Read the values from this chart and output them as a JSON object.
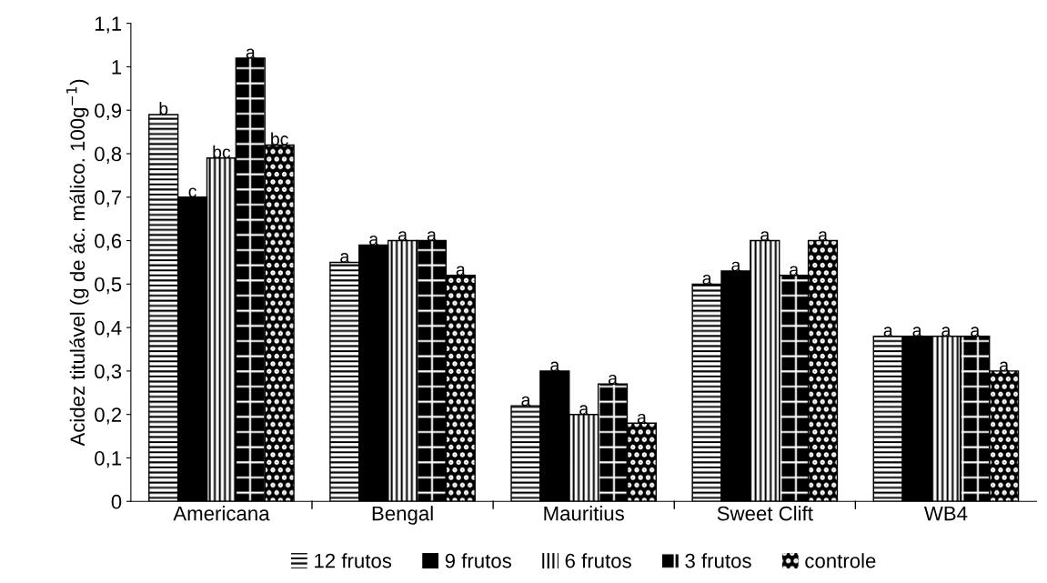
{
  "chart_data": {
    "type": "bar",
    "ylabel": "Acidez titulável (g de ác. málico. 100g$^{−1}$)",
    "categories": [
      "Americana",
      "Bengal",
      "Mauritius",
      "Sweet Clift",
      "WB4"
    ],
    "series": [
      {
        "name": "12 frutos",
        "color": "#000000",
        "values": [
          0.89,
          0.55,
          0.22,
          0.5,
          0.38
        ],
        "value_labels": [
          "b",
          "a",
          "a",
          "a",
          "a"
        ]
      },
      {
        "name": "9 frutos",
        "color": "#000000",
        "values": [
          0.7,
          0.59,
          0.3,
          0.53,
          0.38
        ],
        "value_labels": [
          "c",
          "a",
          "a",
          "a",
          "a"
        ]
      },
      {
        "name": "6 frutos",
        "color": "#000000",
        "values": [
          0.79,
          0.6,
          0.2,
          0.6,
          0.38
        ],
        "value_labels": [
          "bc",
          "a",
          "a",
          "a",
          "a"
        ]
      },
      {
        "name": "3 frutos",
        "color": "#000000",
        "values": [
          1.02,
          0.6,
          0.27,
          0.52,
          0.38
        ],
        "value_labels": [
          "a",
          "a",
          "a",
          "a",
          "a"
        ]
      },
      {
        "name": "controle",
        "color": "#000000",
        "values": [
          0.82,
          0.52,
          0.18,
          0.6,
          0.3
        ],
        "value_labels": [
          "bc",
          "a",
          "a",
          "a",
          "a"
        ]
      }
    ],
    "ylim": [
      0,
      1.1
    ],
    "yticks": [
      0,
      {
        "value": 0.1,
        "label": "0,1"
      },
      {
        "value": 0.2,
        "label": "0,2"
      },
      {
        "value": 0.3,
        "label": "0,3"
      },
      {
        "value": 0.4,
        "label": "0,4"
      },
      {
        "value": 0.5,
        "label": "0,5"
      },
      {
        "value": 0.6,
        "label": "0,6"
      },
      {
        "value": 0.7,
        "label": "0,7"
      },
      {
        "value": 0.8,
        "label": "0,8"
      },
      {
        "value": 0.9,
        "label": "0,9"
      },
      1,
      {
        "value": 1.1,
        "label": "1,1"
      }
    ],
    "grid": false,
    "legend": "bottom"
  }
}
